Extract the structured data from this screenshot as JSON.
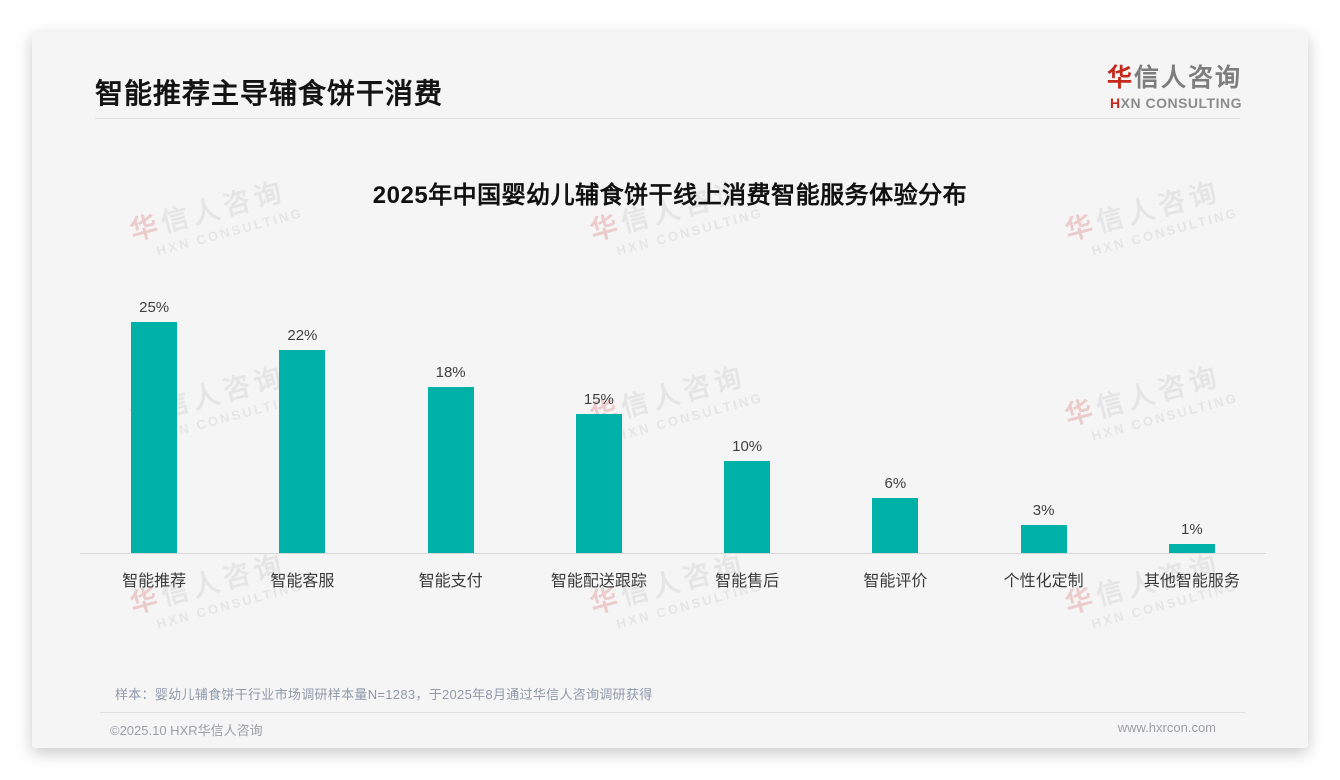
{
  "header": {
    "title": "智能推荐主导辅食饼干消费",
    "logo": {
      "cn_first": "华",
      "cn_rest": "信人咨询",
      "en_first": "H",
      "en_rest": "XN CONSULTING"
    }
  },
  "chart_data": {
    "type": "bar",
    "title": "2025年中国婴幼儿辅食饼干线上消费智能服务体验分布",
    "categories": [
      "智能推荐",
      "智能客服",
      "智能支付",
      "智能配送跟踪",
      "智能售后",
      "智能评价",
      "个性化定制",
      "其他智能服务"
    ],
    "values": [
      25,
      22,
      18,
      15,
      10,
      6,
      3,
      1
    ],
    "value_labels": [
      "25%",
      "22%",
      "18%",
      "15%",
      "10%",
      "6%",
      "3%",
      "1%"
    ],
    "unit": "%",
    "ylim": [
      0,
      25
    ],
    "grid": false,
    "legend": "none",
    "bar_color": "#00b1a8"
  },
  "note": "样本：婴幼儿辅食饼干行业市场调研样本量N=1283，于2025年8月通过华信人咨询调研获得",
  "footer": {
    "left": "©2025.10 HXR华信人咨询",
    "right": "www.hxrcon.com"
  },
  "watermark": {
    "cn_first": "华",
    "cn_rest": "信人咨询",
    "en": "HXN CONSULTING"
  },
  "colors": {
    "accent_red": "#c5271b",
    "bar_teal": "#00b1a8",
    "card_bg": "#f5f5f6"
  }
}
